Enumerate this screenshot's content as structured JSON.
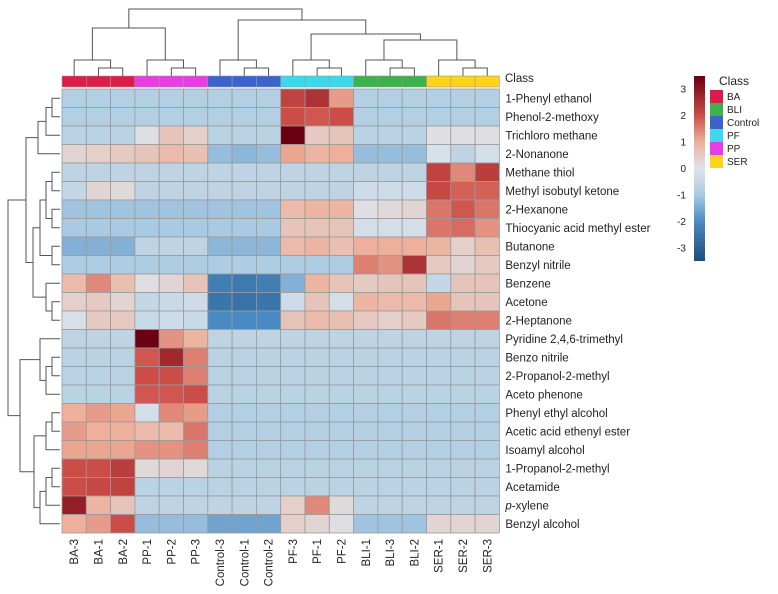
{
  "chart_data": {
    "type": "heatmap",
    "title": "",
    "class_row_label": "Class",
    "columns": [
      "BA-3",
      "BA-1",
      "BA-2",
      "PP-1",
      "PP-2",
      "PP-3",
      "Control-3",
      "Control-1",
      "Control-2",
      "PF-3",
      "PF-1",
      "PF-2",
      "BLI-1",
      "BLI-3",
      "BLI-2",
      "SER-1",
      "SER-2",
      "SER-3"
    ],
    "column_classes": [
      "BA",
      "BA",
      "BA",
      "PP",
      "PP",
      "PP",
      "Control",
      "Control",
      "Control",
      "PF",
      "PF",
      "PF",
      "BLI",
      "BLI",
      "BLI",
      "SER",
      "SER",
      "SER"
    ],
    "rows": [
      {
        "label": "1-Phenyl ethanol",
        "italic_prefix": "",
        "values": [
          -0.8,
          -0.8,
          -0.8,
          -0.8,
          -0.8,
          -0.8,
          -0.8,
          -0.8,
          -0.8,
          2.2,
          2.5,
          1.2,
          -0.8,
          -0.8,
          -0.8,
          -0.8,
          -0.8,
          -0.8
        ]
      },
      {
        "label": "Phenol-2-methoxy",
        "italic_prefix": "",
        "values": [
          -0.8,
          -0.8,
          -0.8,
          -0.8,
          -0.8,
          -0.8,
          -0.8,
          -0.8,
          -0.8,
          2.0,
          1.9,
          2.0,
          -0.8,
          -0.8,
          -0.8,
          -0.8,
          -0.8,
          -0.8
        ]
      },
      {
        "label": "Trichloro methane",
        "italic_prefix": "",
        "values": [
          -0.7,
          -0.7,
          -0.7,
          0.1,
          0.6,
          0.4,
          -0.7,
          -0.7,
          -0.7,
          3.5,
          0.5,
          0.6,
          -0.7,
          -0.7,
          -0.7,
          0.1,
          0.1,
          0.1
        ]
      },
      {
        "label": "2-Nonanone",
        "italic_prefix": "",
        "values": [
          0.3,
          0.4,
          0.5,
          0.6,
          0.8,
          0.7,
          -1.2,
          -1.3,
          -1.2,
          1.1,
          0.9,
          1.0,
          -1.2,
          -1.2,
          -1.2,
          -0.1,
          -0.6,
          -0.2
        ]
      },
      {
        "label": "Methane thiol",
        "italic_prefix": "",
        "values": [
          -0.6,
          -0.6,
          -0.6,
          -0.6,
          -0.6,
          -0.6,
          -0.6,
          -0.6,
          -0.6,
          -0.6,
          -0.6,
          -0.6,
          -0.6,
          -0.6,
          -0.6,
          2.2,
          1.4,
          2.3
        ]
      },
      {
        "label": "Methyl isobutyl ketone",
        "italic_prefix": "",
        "values": [
          -0.5,
          0.3,
          0.2,
          -0.6,
          -0.6,
          -0.6,
          -0.6,
          -0.6,
          -0.6,
          -0.6,
          -0.6,
          -0.6,
          -0.3,
          -0.3,
          -0.3,
          2.1,
          1.8,
          1.8
        ]
      },
      {
        "label": "2-Hexanone",
        "italic_prefix": "",
        "values": [
          -1.1,
          -1.1,
          -1.1,
          -1.1,
          -1.1,
          -1.1,
          -1.1,
          -1.1,
          -1.1,
          0.8,
          0.9,
          0.9,
          0.1,
          0.2,
          0.3,
          1.6,
          1.9,
          1.6
        ]
      },
      {
        "label": "Thiocyanic acid methyl ester",
        "italic_prefix": "",
        "values": [
          -1.0,
          -1.0,
          -1.0,
          -1.0,
          -1.0,
          -1.0,
          -1.0,
          -1.0,
          -1.0,
          0.6,
          0.6,
          0.6,
          -0.2,
          -0.2,
          -0.2,
          1.6,
          1.7,
          1.3
        ]
      },
      {
        "label": "Butanone",
        "italic_prefix": "",
        "values": [
          -1.4,
          -1.4,
          -1.4,
          -0.6,
          -0.6,
          -0.6,
          -1.3,
          -1.3,
          -1.3,
          0.8,
          0.9,
          0.7,
          1.0,
          1.0,
          1.0,
          0.9,
          0.4,
          0.7
        ]
      },
      {
        "label": "Benzyl nitrile",
        "italic_prefix": "",
        "values": [
          -0.9,
          -0.9,
          -0.9,
          -0.9,
          -0.9,
          -0.9,
          -0.9,
          -0.9,
          -0.9,
          -0.9,
          -0.9,
          -0.9,
          1.5,
          1.3,
          2.5,
          0.5,
          0.3,
          0.5
        ]
      },
      {
        "label": "Benzene",
        "italic_prefix": "",
        "values": [
          0.8,
          1.4,
          0.7,
          0.1,
          0.3,
          0.6,
          -2.3,
          -2.4,
          -2.3,
          -1.4,
          0.9,
          0.6,
          0.5,
          0.6,
          0.6,
          -0.5,
          0.6,
          0.6
        ]
      },
      {
        "label": "Acetone",
        "italic_prefix": "",
        "values": [
          0.4,
          0.5,
          0.3,
          -0.5,
          -0.4,
          -0.3,
          -2.5,
          -2.6,
          -2.5,
          -0.3,
          0.6,
          -0.2,
          0.9,
          0.8,
          0.8,
          1.1,
          0.6,
          0.6
        ]
      },
      {
        "label": "2-Heptanone",
        "italic_prefix": "",
        "values": [
          -0.1,
          0.5,
          0.5,
          -0.4,
          -0.3,
          -0.4,
          -2.0,
          -2.0,
          -2.0,
          0.6,
          0.8,
          0.7,
          0.5,
          0.4,
          0.5,
          1.6,
          1.5,
          1.5
        ]
      },
      {
        "label": "Pyridine 2,4,6-trimethyl",
        "italic_prefix": "",
        "values": [
          -0.6,
          -0.6,
          -0.6,
          3.5,
          1.3,
          0.9,
          -0.6,
          -0.6,
          -0.6,
          -0.6,
          -0.6,
          -0.6,
          -0.6,
          -0.6,
          -0.6,
          -0.6,
          -0.6,
          -0.6
        ]
      },
      {
        "label": "Benzo nitrile",
        "italic_prefix": "",
        "values": [
          -0.7,
          -0.7,
          -0.7,
          1.9,
          2.7,
          1.5,
          -0.7,
          -0.7,
          -0.7,
          -0.7,
          -0.7,
          -0.7,
          -0.7,
          -0.7,
          -0.7,
          -0.7,
          -0.7,
          -0.7
        ]
      },
      {
        "label": "2-Propanol-2-methyl",
        "italic_prefix": "",
        "values": [
          -0.7,
          -0.7,
          -0.7,
          2.0,
          2.0,
          1.5,
          -0.7,
          -0.7,
          -0.7,
          -0.7,
          -0.7,
          -0.7,
          -0.7,
          -0.7,
          -0.7,
          -0.7,
          -0.7,
          -0.7
        ]
      },
      {
        "label": "Aceto phenone",
        "italic_prefix": "",
        "values": [
          -0.7,
          -0.7,
          -0.7,
          1.9,
          1.9,
          2.0,
          -0.7,
          -0.7,
          -0.7,
          -0.7,
          -0.7,
          -0.7,
          -0.7,
          -0.7,
          -0.7,
          -0.7,
          -0.7,
          -0.7
        ]
      },
      {
        "label": "Phenyl ethyl alcohol",
        "italic_prefix": "",
        "values": [
          1.0,
          1.2,
          1.1,
          -0.2,
          1.4,
          1.2,
          -0.8,
          -0.8,
          -0.8,
          -0.8,
          -0.8,
          -0.8,
          -0.8,
          -0.8,
          -0.8,
          -0.8,
          -0.8,
          -0.8
        ]
      },
      {
        "label": "Acetic acid ethenyl ester",
        "italic_prefix": "",
        "values": [
          1.2,
          1.0,
          1.0,
          0.8,
          0.8,
          1.6,
          -0.8,
          -0.8,
          -0.8,
          -0.8,
          -0.8,
          -0.8,
          -0.8,
          -0.8,
          -0.8,
          -0.8,
          -0.8,
          -0.8
        ]
      },
      {
        "label": "Isoamyl alcohol",
        "italic_prefix": "",
        "values": [
          1.1,
          1.1,
          1.1,
          1.3,
          1.3,
          1.5,
          -0.8,
          -0.8,
          -0.8,
          -0.8,
          -0.8,
          -0.8,
          -0.8,
          -0.8,
          -0.8,
          -0.8,
          -0.8,
          -0.8
        ]
      },
      {
        "label": "1-Propanol-2-methyl",
        "italic_prefix": "",
        "values": [
          2.0,
          2.0,
          2.3,
          0.2,
          0.3,
          0.2,
          -0.7,
          -0.7,
          -0.7,
          -0.7,
          -0.7,
          -0.7,
          -0.7,
          -0.7,
          -0.7,
          -0.7,
          -0.7,
          -0.7
        ]
      },
      {
        "label": "Acetamide",
        "italic_prefix": "",
        "values": [
          2.0,
          2.1,
          2.2,
          -0.7,
          -0.7,
          -0.7,
          -0.7,
          -0.7,
          -0.7,
          -0.7,
          -0.7,
          -0.7,
          -0.7,
          -0.7,
          -0.7,
          -0.7,
          -0.7,
          -0.7
        ]
      },
      {
        "label": "-xylene",
        "italic_prefix": "p",
        "values": [
          2.9,
          0.9,
          0.6,
          -0.6,
          -0.6,
          -0.6,
          -0.6,
          -0.6,
          -0.6,
          0.4,
          1.4,
          0.2,
          -0.6,
          -0.6,
          -0.6,
          -0.6,
          -0.6,
          -0.6
        ]
      },
      {
        "label": "Benzyl alcohol",
        "italic_prefix": "",
        "values": [
          1.0,
          1.2,
          2.0,
          -1.2,
          -1.2,
          -1.2,
          -1.6,
          -1.6,
          -1.6,
          0.4,
          0.3,
          0.1,
          -1.1,
          -1.1,
          -1.1,
          0.3,
          0.3,
          0.3
        ]
      }
    ],
    "class_colors": {
      "BA": "#d81e49",
      "BLI": "#3bb24a",
      "Control": "#3a63cc",
      "PF": "#3dd8ee",
      "PP": "#e43ee4",
      "SER": "#ffd319"
    },
    "legend": {
      "title": "Class",
      "items": [
        "BA",
        "BLI",
        "Control",
        "PF",
        "PP",
        "SER"
      ]
    },
    "colorbar": {
      "ticks": [
        3,
        2,
        1,
        0,
        -1,
        -2,
        -3
      ],
      "range": [
        -3.5,
        3.5
      ],
      "low_color": "#1d4d7d",
      "mid_color": "#dde3ea",
      "high_color": "#6b0012"
    }
  }
}
